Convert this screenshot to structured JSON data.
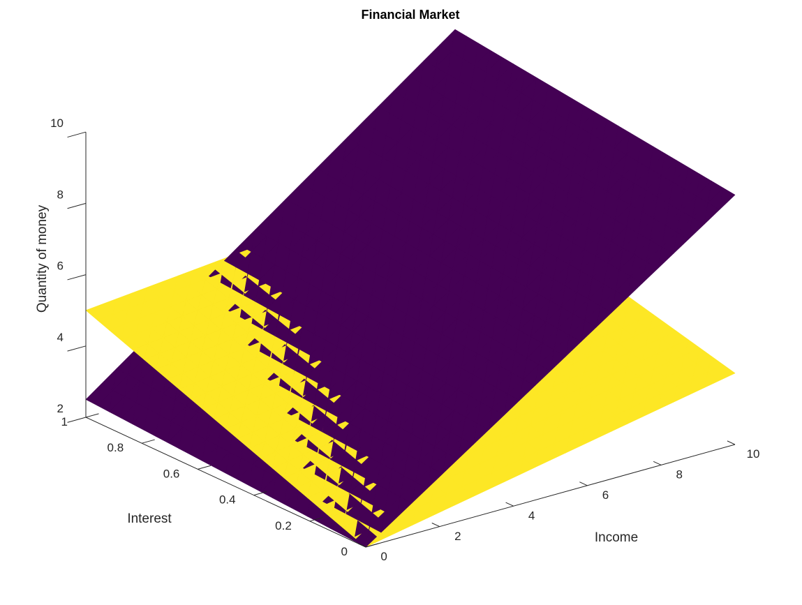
{
  "chart_data": {
    "type": "surface",
    "title": "Financial Market",
    "xlabel": "Income",
    "ylabel": "Interest",
    "zlabel": "Quantity of money",
    "xlim": [
      0,
      10
    ],
    "ylim": [
      0,
      1
    ],
    "zlim": [
      2,
      10
    ],
    "x_ticks": [
      0,
      2,
      4,
      6,
      8,
      10
    ],
    "y_ticks": [
      0,
      0.2,
      0.4,
      0.6,
      0.8,
      1
    ],
    "z_ticks": [
      2,
      4,
      6,
      8,
      10
    ],
    "grid": false,
    "surfaces": [
      {
        "color": "#440154",
        "corners": [
          {
            "x": 0,
            "y": 0,
            "z": 2
          },
          {
            "x": 10,
            "y": 0,
            "z": 9
          },
          {
            "x": 10,
            "y": 1,
            "z": 10
          },
          {
            "x": 0,
            "y": 1,
            "z": 2.5
          }
        ]
      },
      {
        "color": "#fde725",
        "corners": [
          {
            "x": 0,
            "y": 0,
            "z": 2
          },
          {
            "x": 10,
            "y": 0,
            "z": 4
          },
          {
            "x": 10,
            "y": 1,
            "z": 6
          },
          {
            "x": 0,
            "y": 1,
            "z": 5
          }
        ]
      }
    ]
  }
}
